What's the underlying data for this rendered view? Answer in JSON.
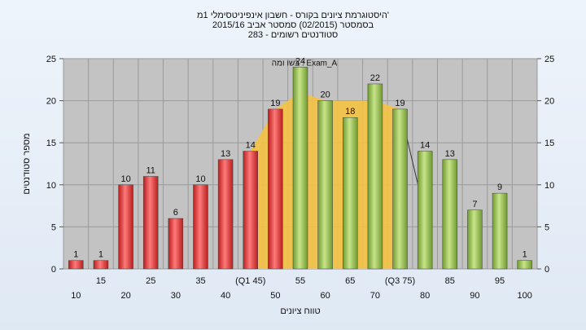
{
  "chart_data": {
    "type": "bar",
    "title_lines": [
      "היסטוגרמת ציונים בקורס - חשבון אינפיניטסימלי 1מ'",
      "בסמסטר  (02/2015)  סמסטר אביב 2015/16",
      "סטודנטים רשומים - 283"
    ],
    "xlabel": "טווח ציונים",
    "ylabel": "מספר סטודנטים",
    "ylim": [
      0,
      25
    ],
    "yticks": [
      0,
      5,
      10,
      15,
      20,
      25
    ],
    "grid": true,
    "categories": [
      "10",
      "15",
      "20",
      "25",
      "30",
      "35",
      "40",
      "(Q1 45)",
      "50",
      "55",
      "60",
      "65",
      "70",
      "(Q3 75)",
      "80",
      "85",
      "90",
      "95",
      "100"
    ],
    "values": [
      1,
      1,
      10,
      11,
      6,
      10,
      13,
      14,
      19,
      24,
      20,
      18,
      22,
      19,
      14,
      13,
      7,
      9,
      1
    ],
    "bar_colors": [
      "red",
      "red",
      "red",
      "red",
      "red",
      "red",
      "red",
      "red",
      "red",
      "green",
      "green",
      "green",
      "green",
      "green",
      "green",
      "green",
      "green",
      "green",
      "green"
    ],
    "colors": {
      "red": "#e23b3b",
      "green": "#8fbc48",
      "plot_bg": "#c3c3c3",
      "highlight": "#f5c242"
    },
    "highlight_label": "בשו ומה : Exam_A",
    "highlight_values": [
      {
        "x": "(Q1 45)",
        "y": 14
      },
      {
        "x": "50",
        "y": 19
      },
      {
        "x": "55",
        "y": 21
      },
      {
        "x": "60",
        "y": 20
      },
      {
        "x": "65",
        "y": 20
      },
      {
        "x": "70",
        "y": 20
      },
      {
        "x": "(Q3 75)",
        "y": 19
      }
    ]
  }
}
